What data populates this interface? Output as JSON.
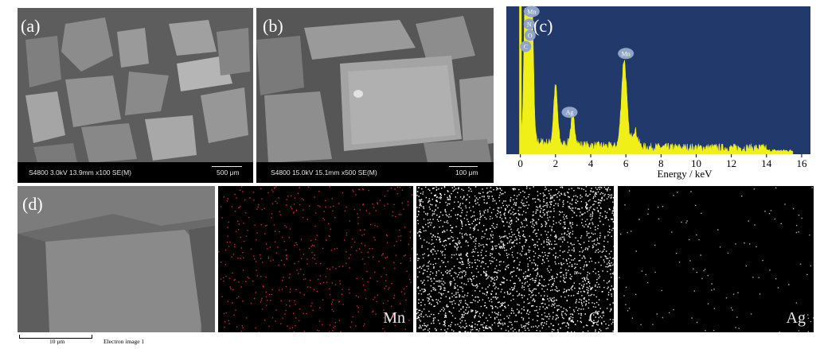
{
  "panels": {
    "a": {
      "label": "(a)",
      "info": "S4800 3.0kV 13.9mm x100 SE(M)",
      "scalebar": "500 μm"
    },
    "b": {
      "label": "(b)",
      "info": "S4800 15.0kV 15.1mm x500 SE(M)",
      "scalebar": "100 μm"
    },
    "c": {
      "label": "(c)"
    },
    "d": {
      "label": "(d)",
      "scalebar": "10 μm",
      "caption": "Electron image 1"
    },
    "maps": [
      {
        "element": "Mn",
        "color": "#d02a3a",
        "density": 520
      },
      {
        "element": "C",
        "color": "#ffffff",
        "density": 2600
      },
      {
        "element": "Ag",
        "color": "#b0b0b0",
        "density": 120
      }
    ]
  },
  "chart_data": {
    "type": "line",
    "title": "",
    "xlabel": "Energy / keV",
    "ylabel": "",
    "xlim": [
      -0.8,
      16.5
    ],
    "x_ticks": [
      0,
      2,
      4,
      6,
      8,
      10,
      12,
      14,
      16
    ],
    "background": "#22396b",
    "series_color": "#f0f018",
    "peaks": [
      {
        "element": "Mn",
        "energy": 0.64,
        "height": 1.0
      },
      {
        "element": "N",
        "energy": 0.39,
        "height": 0.88
      },
      {
        "element": "O",
        "energy": 0.52,
        "height": 0.86
      },
      {
        "element": "C",
        "energy": 0.28,
        "height": 0.8
      },
      {
        "element": "",
        "energy": 2.0,
        "height": 0.41
      },
      {
        "element": "Ag",
        "energy": 2.98,
        "height": 0.2
      },
      {
        "element": "Mn",
        "energy": 5.9,
        "height": 0.62
      },
      {
        "element": "",
        "energy": 6.5,
        "height": 0.12
      }
    ],
    "peak_labels": [
      {
        "text": "Mn",
        "energy": 0.64,
        "level": 1.02
      },
      {
        "text": "N",
        "energy": 0.5,
        "level": 0.93
      },
      {
        "text": "O",
        "energy": 0.55,
        "level": 0.85
      },
      {
        "text": "C",
        "energy": 0.3,
        "level": 0.77
      },
      {
        "text": "Ag",
        "energy": 2.8,
        "level": 0.3
      },
      {
        "text": "Mn",
        "energy": 6.0,
        "level": 0.72
      }
    ]
  }
}
